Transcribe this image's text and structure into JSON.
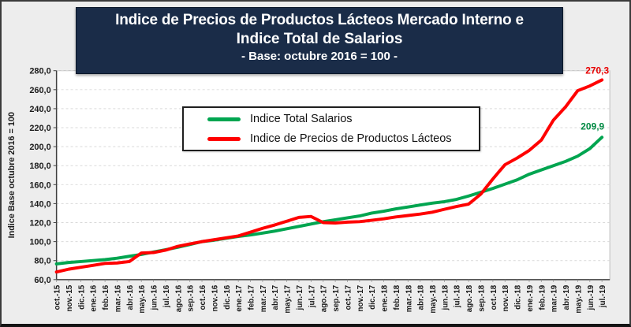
{
  "header": {
    "title_line1": "Indice de Precios de Productos Lácteos Mercado Interno e",
    "title_line2": "Indice Total de Salarios",
    "subtitle": "- Base: octubre 2016 = 100 -"
  },
  "chart_data": {
    "type": "line",
    "title": "Indice de Precios de Productos Lácteos Mercado Interno e Indice Total de Salarios",
    "subtitle": "- Base: octubre 2016 = 100 -",
    "y_axis_title": "Indice Base octubre 2016 = 100",
    "xlabel": "",
    "ylabel": "Indice Base octubre 2016 = 100",
    "ylim": [
      60,
      280
    ],
    "y_step": 20,
    "grid": "horizontal-dashed",
    "legend_position": "top-center",
    "categories": [
      "oct.-15",
      "nov.-15",
      "dic.-15",
      "ene.-16",
      "feb.-16",
      "mar.-16",
      "abr.-16",
      "may.-16",
      "jun.-16",
      "jul.-16",
      "ago.-16",
      "sep.-16",
      "oct.-16",
      "nov.-16",
      "dic.-16",
      "ene.-17",
      "feb.-17",
      "mar.-17",
      "abr.-17",
      "may.-17",
      "jun.-17",
      "jul.-17",
      "ago.-17",
      "sep.-17",
      "oct.-17",
      "nov.-17",
      "dic.-17",
      "ene.-18",
      "feb.-18",
      "mar.-18",
      "abr.-18",
      "may.-18",
      "jun.-18",
      "jul.-18",
      "ago.-18",
      "sep.-18",
      "oct.-18",
      "nov.-18",
      "dic.-18",
      "ene.-19",
      "feb.-19",
      "mar.-19",
      "abr.-19",
      "may.-19",
      "jun.-19",
      "jul.-19"
    ],
    "series": [
      {
        "name": "Indice Total Salarios",
        "color": "#00A550",
        "label_color": "#008A43",
        "end_label": "209,9",
        "values": [
          76.5,
          78,
          79,
          80,
          81,
          82.5,
          84.5,
          86.5,
          89,
          91.5,
          94,
          97,
          100,
          101.5,
          103.5,
          105.5,
          107,
          109,
          111,
          113.5,
          116,
          118.5,
          121,
          123,
          125,
          127,
          130,
          132,
          134.5,
          136.5,
          138.5,
          140.5,
          142,
          144.5,
          148,
          152,
          156,
          160.5,
          165,
          171,
          175.5,
          180,
          184.5,
          190,
          198,
          209.9
        ]
      },
      {
        "name": "Indice de Precios de Productos Lácteos",
        "color": "#FF0000",
        "label_color": "#E80000",
        "end_label": "270,3",
        "values": [
          68,
          71,
          73,
          75,
          77,
          77.5,
          79,
          88,
          88.5,
          91,
          95,
          97.5,
          100,
          102,
          104,
          106,
          110,
          114,
          117.5,
          121.5,
          125.5,
          126.5,
          120,
          119.5,
          120.5,
          121,
          122.5,
          124,
          126,
          127.5,
          129,
          131,
          134,
          137,
          139.5,
          150,
          166,
          181,
          188,
          196,
          207,
          228,
          242,
          259,
          264,
          270.3
        ]
      }
    ]
  },
  "colors": {
    "title_bg": "#1A2C48",
    "title_text": "#FFFFFF",
    "figure_bg": "#EDEDED",
    "plot_bg": "#FFFFFF",
    "grid": "#D9D9D9",
    "axis": "#404040",
    "plot_border": "#BFBFBF",
    "tick_text": "#1A1A1A"
  }
}
